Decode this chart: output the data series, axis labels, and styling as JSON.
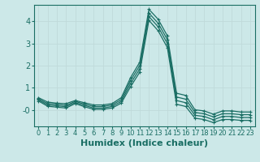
{
  "title": "",
  "xlabel": "Humidex (Indice chaleur)",
  "background_color": "#cce8e8",
  "grid_color": "#b8d8d8",
  "line_color": "#1a6e64",
  "x": [
    0,
    1,
    2,
    3,
    4,
    5,
    6,
    7,
    8,
    9,
    10,
    11,
    12,
    13,
    14,
    15,
    16,
    17,
    18,
    19,
    20,
    21,
    22,
    23
  ],
  "lines": [
    [
      0.55,
      0.35,
      0.3,
      0.28,
      0.42,
      0.32,
      0.22,
      0.22,
      0.28,
      0.55,
      1.45,
      2.15,
      4.55,
      4.1,
      3.35,
      0.75,
      0.65,
      0.0,
      -0.05,
      -0.2,
      -0.05,
      -0.05,
      -0.1,
      -0.1
    ],
    [
      0.5,
      0.28,
      0.25,
      0.2,
      0.38,
      0.26,
      0.15,
      0.15,
      0.22,
      0.46,
      1.32,
      2.0,
      4.38,
      3.92,
      3.18,
      0.58,
      0.48,
      -0.12,
      -0.18,
      -0.32,
      -0.18,
      -0.18,
      -0.22,
      -0.22
    ],
    [
      0.45,
      0.22,
      0.18,
      0.14,
      0.33,
      0.2,
      0.08,
      0.08,
      0.15,
      0.38,
      1.18,
      1.85,
      4.22,
      3.76,
      3.0,
      0.42,
      0.32,
      -0.25,
      -0.3,
      -0.45,
      -0.3,
      -0.3,
      -0.35,
      -0.35
    ],
    [
      0.4,
      0.16,
      0.12,
      0.08,
      0.28,
      0.14,
      0.02,
      0.02,
      0.08,
      0.3,
      1.04,
      1.7,
      4.05,
      3.58,
      2.82,
      0.25,
      0.15,
      -0.38,
      -0.44,
      -0.58,
      -0.44,
      -0.44,
      -0.48,
      -0.48
    ]
  ],
  "ylim": [
    -0.75,
    4.75
  ],
  "yticks": [
    0,
    1,
    2,
    3,
    4
  ],
  "ytick_labels": [
    "-0",
    "1",
    "2",
    "3",
    "4"
  ],
  "marker": "+",
  "marker_size": 3.5,
  "line_width": 0.9,
  "xlabel_fontsize": 8,
  "tick_fontsize": 7
}
